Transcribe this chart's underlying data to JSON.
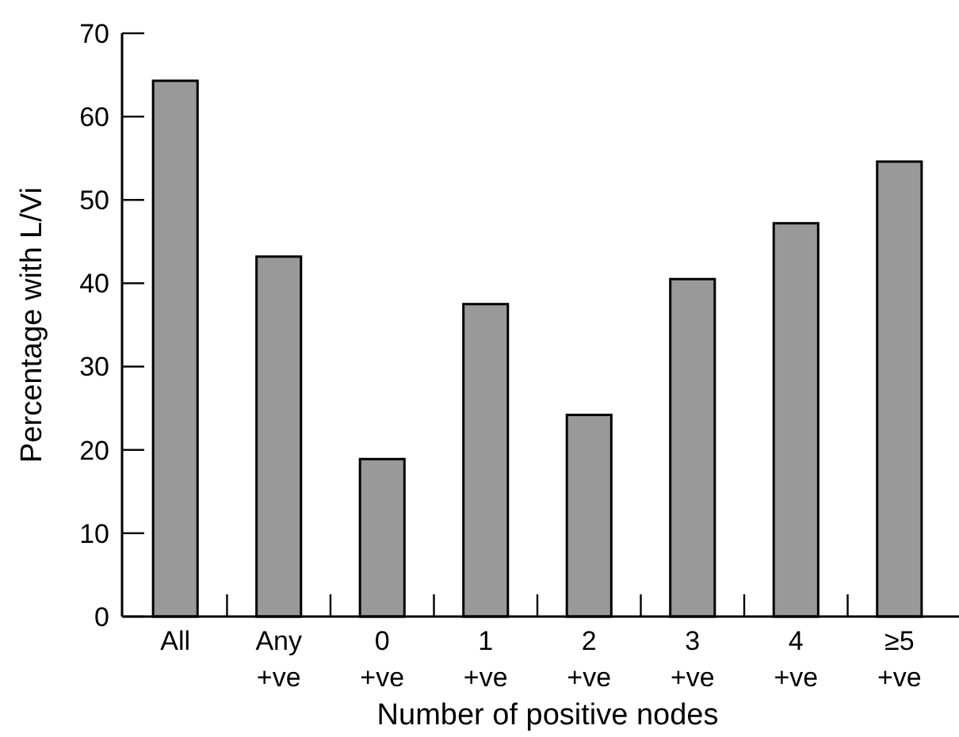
{
  "chart_data": {
    "type": "bar",
    "xlabel": "Number of positive nodes",
    "ylabel": "Percentage with L/Vi",
    "categories": [
      "All",
      "Any +ve",
      "0 +ve",
      "1 +ve",
      "2 +ve",
      "3 +ve",
      "4 +ve",
      "≥5 +ve"
    ],
    "values": [
      64.3,
      43.2,
      18.9,
      37.5,
      24.2,
      40.5,
      47.2,
      54.6
    ],
    "color": "#999999",
    "ylim": [
      0,
      70
    ],
    "yticks": [
      0,
      10,
      20,
      30,
      40,
      50,
      60,
      70
    ],
    "grid": false
  }
}
